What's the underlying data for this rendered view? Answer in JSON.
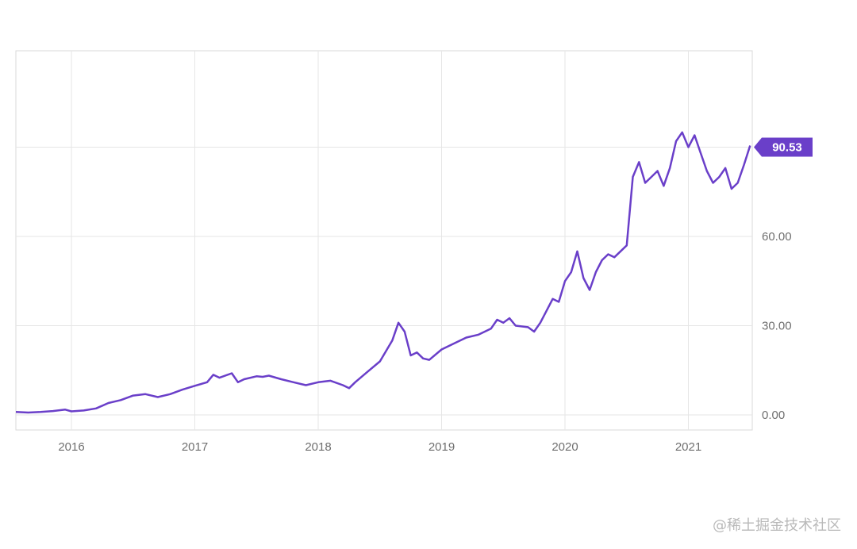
{
  "chart_data": {
    "type": "line",
    "title": "",
    "xlabel": "",
    "ylabel": "",
    "x_ticks": [
      "2016",
      "2017",
      "2018",
      "2019",
      "2020",
      "2021"
    ],
    "y_ticks": [
      "0.00",
      "30.00",
      "60.00"
    ],
    "ylim": [
      -5,
      118
    ],
    "xlim": [
      2015.55,
      2021.5
    ],
    "grid": true,
    "last_value_label": "90.53",
    "line_color": "#6a3fc9",
    "series": [
      {
        "x": [
          2015.55,
          2015.65,
          2015.75,
          2015.85,
          2015.95,
          2016.0,
          2016.1,
          2016.2,
          2016.3,
          2016.4,
          2016.5,
          2016.6,
          2016.7,
          2016.8,
          2016.9,
          2017.0,
          2017.1,
          2017.15,
          2017.2,
          2017.3,
          2017.35,
          2017.4,
          2017.5,
          2017.55,
          2017.6,
          2017.7,
          2017.8,
          2017.9,
          2018.0,
          2018.1,
          2018.2,
          2018.25,
          2018.3,
          2018.4,
          2018.5,
          2018.6,
          2018.65,
          2018.7,
          2018.75,
          2018.8,
          2018.85,
          2018.9,
          2019.0,
          2019.1,
          2019.2,
          2019.3,
          2019.4,
          2019.45,
          2019.5,
          2019.55,
          2019.6,
          2019.7,
          2019.75,
          2019.8,
          2019.85,
          2019.9,
          2019.95,
          2020.0,
          2020.05,
          2020.1,
          2020.15,
          2020.2,
          2020.25,
          2020.3,
          2020.35,
          2020.4,
          2020.45,
          2020.5,
          2020.55,
          2020.6,
          2020.65,
          2020.7,
          2020.75,
          2020.8,
          2020.85,
          2020.9,
          2020.95,
          2021.0,
          2021.05,
          2021.1,
          2021.15,
          2021.2,
          2021.25,
          2021.3,
          2021.35,
          2021.4,
          2021.45,
          2021.5
        ],
        "values": [
          1.0,
          0.8,
          1.0,
          1.3,
          1.8,
          1.2,
          1.5,
          2.2,
          4.0,
          5.0,
          6.5,
          7.0,
          6.0,
          7.0,
          8.5,
          9.8,
          11.0,
          13.5,
          12.5,
          14.0,
          11.0,
          12.0,
          13.0,
          12.8,
          13.2,
          12.0,
          11.0,
          10.0,
          11.0,
          11.5,
          10.0,
          9.0,
          11.0,
          14.5,
          18.0,
          25.0,
          31.0,
          28.0,
          20.0,
          21.0,
          19.0,
          18.5,
          22.0,
          24.0,
          26.0,
          27.0,
          29.0,
          32.0,
          31.0,
          32.5,
          30.0,
          29.5,
          28.0,
          31.0,
          35.0,
          39.0,
          38.0,
          45.0,
          48.0,
          55.0,
          46.0,
          42.0,
          48.0,
          52.0,
          54.0,
          53.0,
          55.0,
          57.0,
          80.0,
          85.0,
          78.0,
          80.0,
          82.0,
          77.0,
          83.0,
          92.0,
          95.0,
          90.0,
          94.0,
          88.0,
          82.0,
          78.0,
          80.0,
          83.0,
          76.0,
          78.0,
          84.0,
          90.53
        ]
      }
    ]
  },
  "watermark": "@稀土掘金技术社区"
}
